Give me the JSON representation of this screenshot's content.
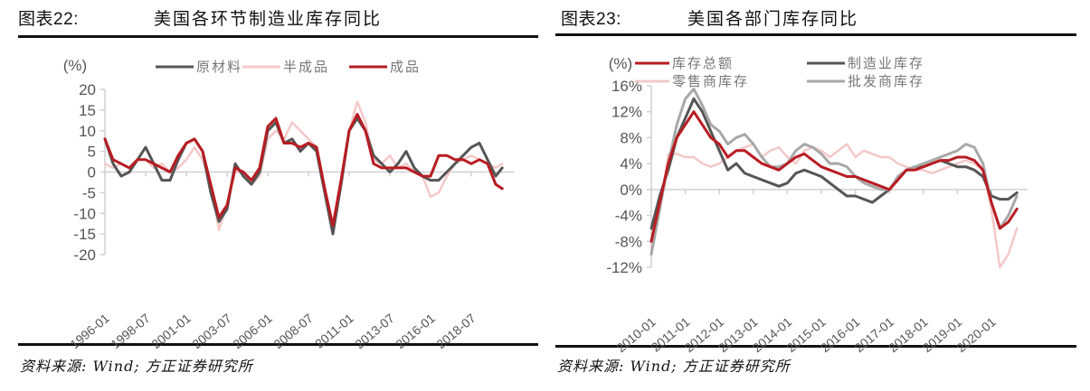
{
  "left": {
    "figure_label": "图表22:",
    "title": "美国各环节制造业库存同比",
    "unit_label": "(%)",
    "source": "资料来源: Wind; 方正证券研究所"
  },
  "right": {
    "figure_label": "图表23:",
    "title": "美国各部门库存同比",
    "unit_label": "(%)",
    "source": "资料来源: Wind; 方正证券研究所"
  },
  "chart_data": [
    {
      "type": "line",
      "title": "美国各环节制造业库存同比",
      "ylabel": "(%)",
      "xlabel": "",
      "ylim": [
        -20,
        20
      ],
      "yticks": [
        20,
        15,
        10,
        5,
        0,
        -5,
        -10,
        -15,
        -20
      ],
      "xtick_labels": [
        "1996-01",
        "1998-07",
        "2001-01",
        "2003-07",
        "2006-01",
        "2008-07",
        "2011-01",
        "2013-07",
        "2016-01",
        "2018-07"
      ],
      "legend_position": "top",
      "grid": false,
      "x": [
        1996.0,
        1996.5,
        1997.0,
        1997.5,
        1998.0,
        1998.5,
        1999.0,
        1999.5,
        2000.0,
        2000.5,
        2001.0,
        2001.5,
        2002.0,
        2002.5,
        2003.0,
        2003.5,
        2004.0,
        2004.5,
        2005.0,
        2005.5,
        2006.0,
        2006.5,
        2007.0,
        2007.5,
        2008.0,
        2008.5,
        2009.0,
        2009.5,
        2010.0,
        2010.5,
        2011.0,
        2011.5,
        2012.0,
        2012.5,
        2013.0,
        2013.5,
        2014.0,
        2014.5,
        2015.0,
        2015.5,
        2016.0,
        2016.5,
        2017.0,
        2017.5,
        2018.0,
        2018.5,
        2019.0,
        2019.5,
        2020.0,
        2020.4
      ],
      "series": [
        {
          "name": "原材料",
          "color": "#555555",
          "width": 3,
          "values": [
            8,
            2,
            -1,
            0,
            3,
            6,
            2,
            -2,
            -2,
            3,
            7,
            8,
            5,
            -5,
            -12,
            -9,
            2,
            -1,
            -3,
            0,
            10,
            12,
            7,
            8,
            5,
            7,
            5,
            -5,
            -15,
            -3,
            10,
            13,
            10,
            4,
            2,
            0,
            2,
            5,
            1,
            -1,
            -2,
            -2,
            0,
            2,
            4,
            6,
            7,
            3,
            -1,
            1
          ]
        },
        {
          "name": "半成品",
          "color": "#f5c8c8",
          "width": 2.5,
          "values": [
            2,
            1,
            2,
            1,
            3,
            3,
            1,
            2,
            0,
            1,
            3,
            6,
            3,
            -3,
            -14,
            -8,
            0,
            0,
            -3,
            -1,
            8,
            10,
            8,
            12,
            10,
            8,
            6,
            -4,
            -13,
            -4,
            10,
            17,
            12,
            3,
            2,
            4,
            1,
            2,
            0,
            -1,
            -6,
            -5,
            -1,
            2,
            3,
            4,
            3,
            2,
            1,
            2
          ]
        },
        {
          "name": "成品",
          "color": "#b81c22",
          "width": 3,
          "values": [
            8,
            3,
            2,
            1,
            3,
            3,
            2,
            1,
            0,
            4,
            7,
            8,
            5,
            -3,
            -11,
            -8,
            1,
            0,
            -2,
            1,
            11,
            13,
            7,
            7,
            6,
            7,
            6,
            -4,
            -13,
            -2,
            10,
            14,
            10,
            2,
            1,
            1,
            1,
            1,
            0,
            -1,
            -1,
            4,
            4,
            3,
            3,
            2,
            3,
            2,
            -3,
            -4
          ]
        }
      ]
    },
    {
      "type": "line",
      "title": "美国各部门库存同比",
      "ylabel": "(%)",
      "xlabel": "",
      "ylim": [
        -12,
        16
      ],
      "yticks": [
        "16%",
        "12%",
        "8%",
        "4%",
        "0%",
        "-4%",
        "-8%",
        "-12%"
      ],
      "xtick_labels": [
        "2010-01",
        "2011-01",
        "2012-01",
        "2013-01",
        "2014-01",
        "2015-01",
        "2016-01",
        "2017-01",
        "2018-01",
        "2019-01",
        "2020-01"
      ],
      "legend_position": "top",
      "grid": false,
      "x": [
        2010.0,
        2010.25,
        2010.5,
        2010.75,
        2011.0,
        2011.25,
        2011.5,
        2011.75,
        2012.0,
        2012.25,
        2012.5,
        2012.75,
        2013.0,
        2013.25,
        2013.5,
        2013.75,
        2014.0,
        2014.25,
        2014.5,
        2014.75,
        2015.0,
        2015.25,
        2015.5,
        2015.75,
        2016.0,
        2016.25,
        2016.5,
        2016.75,
        2017.0,
        2017.25,
        2017.5,
        2017.75,
        2018.0,
        2018.25,
        2018.5,
        2018.75,
        2019.0,
        2019.25,
        2019.5,
        2019.75,
        2020.0,
        2020.25,
        2020.5,
        2020.75
      ],
      "series": [
        {
          "name": "库存总额",
          "color": "#b81c22",
          "width": 3,
          "values": [
            -8,
            -2,
            4,
            8,
            10,
            12,
            10,
            8,
            7,
            5,
            6,
            6,
            5,
            4,
            3.5,
            3,
            4,
            5,
            5.5,
            4.5,
            3.5,
            3,
            2.5,
            2,
            2,
            1.5,
            1,
            0.5,
            0,
            1.5,
            3,
            3,
            3.5,
            4,
            4.5,
            4.5,
            5,
            5,
            4.5,
            3,
            -2,
            -6,
            -5,
            -3
          ]
        },
        {
          "name": "制造业库存",
          "color": "#555555",
          "width": 3,
          "values": [
            -6,
            -1,
            3,
            8,
            11,
            14,
            12,
            9,
            6,
            3,
            4,
            2.5,
            2,
            1.5,
            1,
            0.5,
            1,
            2.5,
            3,
            2.5,
            2,
            1,
            0,
            -1,
            -1,
            -1.5,
            -2,
            -1,
            0,
            1.5,
            3,
            3.5,
            3.5,
            4,
            4.5,
            4,
            3.5,
            3.5,
            3,
            2,
            -1,
            -1.5,
            -1.5,
            -0.5
          ]
        },
        {
          "name": "零售商库存",
          "color": "#f5c8c8",
          "width": 2.5,
          "values": [
            -9,
            -3,
            5.5,
            5.5,
            5,
            5,
            4,
            3.5,
            4,
            5,
            6,
            6.5,
            7,
            5,
            6,
            6.5,
            5,
            4,
            6,
            6.5,
            6,
            5,
            6,
            7,
            5,
            6,
            5.5,
            5,
            5,
            4,
            3.5,
            3,
            3,
            2.5,
            3,
            3.5,
            4,
            4.5,
            4,
            3,
            -3,
            -12,
            -10,
            -6
          ]
        },
        {
          "name": "批发商库存",
          "color": "#a8a8a8",
          "width": 3,
          "values": [
            -10,
            -3,
            4,
            10,
            14,
            15.5,
            13,
            10,
            9,
            7,
            8,
            8.5,
            7,
            5,
            3.5,
            3.5,
            4,
            6,
            7,
            6.5,
            5.5,
            4,
            4,
            3.5,
            2,
            1,
            0.5,
            0,
            0,
            2,
            3,
            3.5,
            4,
            4.5,
            5,
            5.5,
            6,
            7,
            6.5,
            4,
            -2,
            -6,
            -4,
            -1
          ]
        }
      ]
    }
  ]
}
